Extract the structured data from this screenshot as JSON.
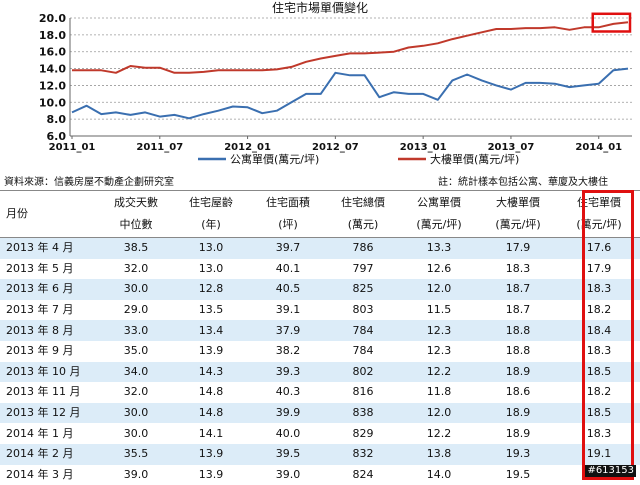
{
  "chart_data": {
    "type": "line",
    "title": "住宅市場單價變化",
    "xlabel": "",
    "ylabel": "",
    "ylim": [
      6.0,
      20.0
    ],
    "yticks": [
      "6.0",
      "8.0",
      "10.0",
      "12.0",
      "14.0",
      "16.0",
      "18.0",
      "20.0"
    ],
    "xticks": [
      "2011_01",
      "2011_07",
      "2012_01",
      "2012_07",
      "2013_01",
      "2013_07",
      "2014_01"
    ],
    "x": [
      "2011_01",
      "2011_02",
      "2011_03",
      "2011_04",
      "2011_05",
      "2011_06",
      "2011_07",
      "2011_08",
      "2011_09",
      "2011_10",
      "2011_11",
      "2011_12",
      "2012_01",
      "2012_02",
      "2012_03",
      "2012_04",
      "2012_05",
      "2012_06",
      "2012_07",
      "2012_08",
      "2012_09",
      "2012_10",
      "2012_11",
      "2012_12",
      "2013_01",
      "2013_02",
      "2013_03",
      "2013_04",
      "2013_05",
      "2013_06",
      "2013_07",
      "2013_08",
      "2013_09",
      "2013_10",
      "2013_11",
      "2013_12",
      "2014_01",
      "2014_02",
      "2014_03"
    ],
    "series": [
      {
        "name": "公寓單價(萬元/坪)",
        "color": "#3a6fb0",
        "values": [
          8.8,
          9.6,
          8.6,
          8.8,
          8.5,
          8.8,
          8.3,
          8.5,
          8.1,
          8.6,
          9.0,
          9.5,
          9.4,
          8.7,
          9.0,
          10.0,
          11.0,
          11.0,
          13.5,
          13.2,
          13.2,
          10.6,
          11.2,
          11.0,
          11.0,
          10.3,
          12.6,
          13.3,
          12.6,
          12.0,
          11.5,
          12.3,
          12.3,
          12.2,
          11.8,
          12.0,
          12.2,
          13.8,
          14.0
        ]
      },
      {
        "name": "大樓單價(萬元/坪)",
        "color": "#c0392b",
        "values": [
          13.8,
          13.8,
          13.8,
          13.5,
          14.3,
          14.1,
          14.1,
          13.5,
          13.5,
          13.6,
          13.8,
          13.8,
          13.8,
          13.8,
          13.9,
          14.2,
          14.8,
          15.2,
          15.5,
          15.8,
          15.8,
          15.9,
          16.0,
          16.5,
          16.7,
          17.0,
          17.5,
          17.9,
          18.3,
          18.7,
          18.7,
          18.8,
          18.8,
          18.9,
          18.6,
          18.9,
          18.9,
          19.3,
          19.5
        ]
      }
    ],
    "legend_position": "bottom",
    "grid": true,
    "highlight_box": {
      "start_index": 36,
      "end_index": 38,
      "color": "#e01010"
    }
  },
  "source_text": "資料來源：信義房屋不動產企劃研究室",
  "note_text": "註：統計樣本包括公寓、華廈及大樓住",
  "table": {
    "headers": [
      [
        "月份"
      ],
      [
        "成交天數",
        "中位數"
      ],
      [
        "住宅屋齡",
        "(年)"
      ],
      [
        "住宅面積",
        "(坪)"
      ],
      [
        "住宅總價",
        "(萬元)"
      ],
      [
        "公寓單價",
        "(萬元/坪)"
      ],
      [
        "大樓單價",
        "(萬元/坪)"
      ],
      [
        "住宅單價",
        "(萬元/坪)"
      ]
    ],
    "rows": [
      [
        "2013 年 4 月",
        "38.5",
        "13.0",
        "39.7",
        "786",
        "13.3",
        "17.9",
        "17.6"
      ],
      [
        "2013 年 5 月",
        "32.0",
        "13.0",
        "40.1",
        "797",
        "12.6",
        "18.3",
        "17.9"
      ],
      [
        "2013 年 6 月",
        "30.0",
        "12.8",
        "40.5",
        "825",
        "12.0",
        "18.7",
        "18.3"
      ],
      [
        "2013 年 7 月",
        "29.0",
        "13.5",
        "39.1",
        "803",
        "11.5",
        "18.7",
        "18.2"
      ],
      [
        "2013 年 8 月",
        "33.0",
        "13.4",
        "37.9",
        "784",
        "12.3",
        "18.8",
        "18.4"
      ],
      [
        "2013 年 9 月",
        "35.0",
        "13.9",
        "38.2",
        "784",
        "12.3",
        "18.8",
        "18.3"
      ],
      [
        "2013 年 10 月",
        "34.0",
        "14.3",
        "39.3",
        "802",
        "12.2",
        "18.9",
        "18.5"
      ],
      [
        "2013 年 11 月",
        "32.0",
        "14.8",
        "40.3",
        "816",
        "11.8",
        "18.6",
        "18.2"
      ],
      [
        "2013 年 12 月",
        "30.0",
        "14.8",
        "39.9",
        "838",
        "12.0",
        "18.9",
        "18.5"
      ],
      [
        "2014 年 1 月",
        "30.0",
        "14.1",
        "40.0",
        "829",
        "12.2",
        "18.9",
        "18.3"
      ],
      [
        "2014 年 2 月",
        "35.5",
        "13.9",
        "39.5",
        "832",
        "13.8",
        "19.3",
        "19.1"
      ],
      [
        "2014 年 3 月",
        "39.0",
        "13.9",
        "39.0",
        "824",
        "14.0",
        "19.5",
        "19.1"
      ]
    ]
  },
  "watermark": "#613153"
}
